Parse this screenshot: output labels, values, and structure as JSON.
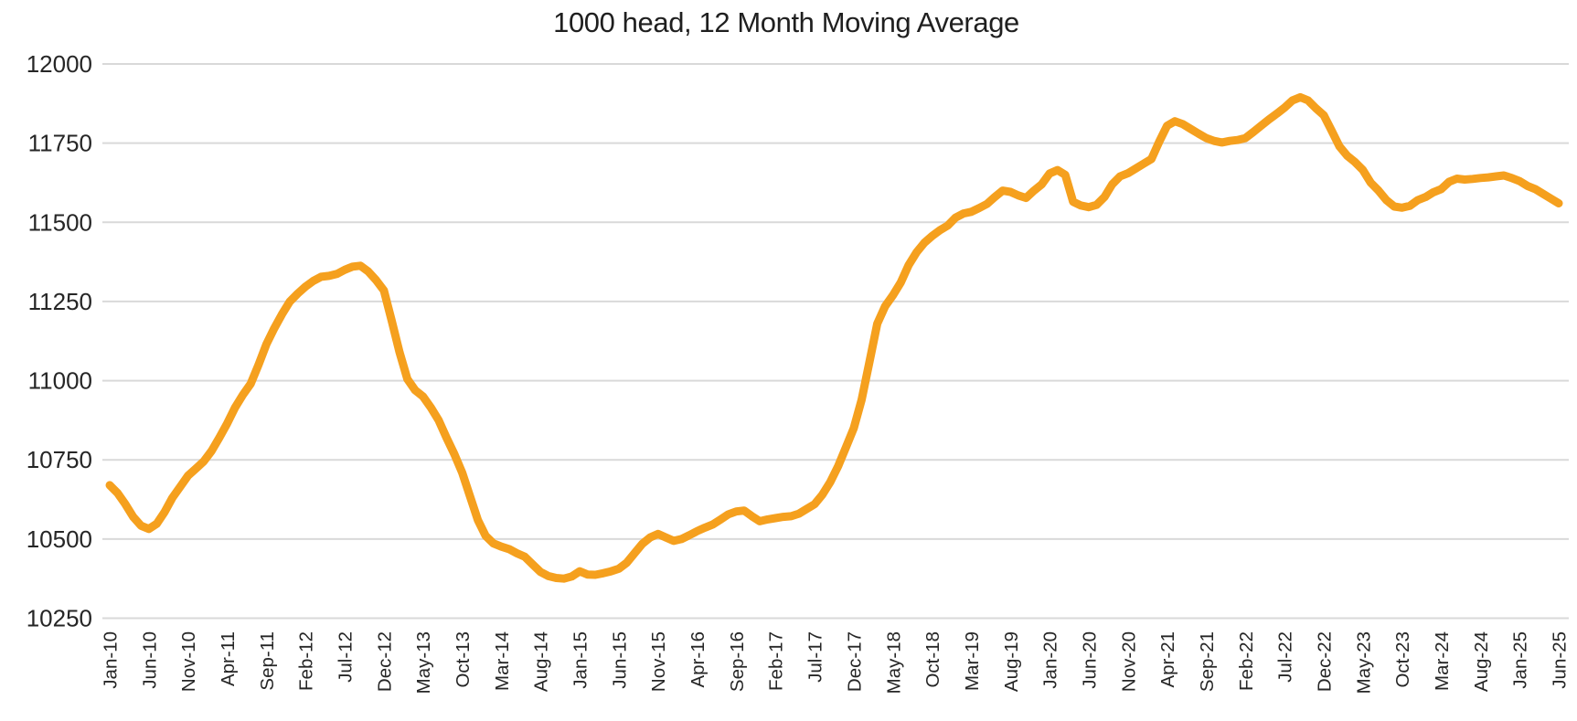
{
  "page": {
    "background": "#FFFFFF"
  },
  "chart_data": {
    "type": "line",
    "title": "1000 head, 12 Month Moving Average",
    "xlabel": "",
    "ylabel": "",
    "x_start": "Jan-10",
    "x_end": "Jun-25",
    "x_frequency": "monthly",
    "x_tick_every_n_points": 5,
    "x_tick_labels": [
      "Jan-10",
      "Jun-10",
      "Nov-10",
      "Apr-11",
      "Sep-11",
      "Feb-12",
      "Jul-12",
      "Dec-12",
      "May-13",
      "Oct-13",
      "Mar-14",
      "Aug-14",
      "Jan-15",
      "Jun-15",
      "Nov-15",
      "Apr-16",
      "Sep-16",
      "Feb-17",
      "Jul-17",
      "Dec-17",
      "May-18",
      "Oct-18",
      "Mar-19",
      "Aug-19",
      "Jan-20",
      "Jun-20",
      "Nov-20",
      "Apr-21",
      "Sep-21",
      "Feb-22",
      "Jul-22",
      "Dec-22",
      "May-23",
      "Oct-23",
      "Mar-24",
      "Aug-24",
      "Jan-25",
      "Jun-25"
    ],
    "ylim": [
      10250,
      12000
    ],
    "ytick_step": 250,
    "yticks": [
      10250,
      10500,
      10750,
      11000,
      11250,
      11500,
      11750,
      12000
    ],
    "grid": "horizontal-only",
    "legend": "none",
    "series": [
      {
        "name": "12 Month Moving Average",
        "color": "#F5A01E",
        "values": [
          10670,
          10645,
          10610,
          10570,
          10542,
          10532,
          10548,
          10585,
          10630,
          10665,
          10700,
          10722,
          10745,
          10778,
          10820,
          10865,
          10915,
          10955,
          10990,
          11050,
          11115,
          11165,
          11210,
          11250,
          11275,
          11297,
          11315,
          11328,
          11331,
          11337,
          11350,
          11360,
          11363,
          11345,
          11318,
          11285,
          11190,
          11090,
          11005,
          10970,
          10950,
          10915,
          10875,
          10820,
          10768,
          10710,
          10635,
          10560,
          10510,
          10486,
          10476,
          10468,
          10455,
          10444,
          10420,
          10396,
          10383,
          10377,
          10375,
          10382,
          10398,
          10388,
          10387,
          10392,
          10398,
          10406,
          10425,
          10455,
          10485,
          10505,
          10516,
          10505,
          10494,
          10500,
          10512,
          10525,
          10536,
          10546,
          10562,
          10578,
          10587,
          10590,
          10572,
          10556,
          10562,
          10566,
          10570,
          10572,
          10580,
          10595,
          10610,
          10640,
          10680,
          10730,
          10790,
          10850,
          10940,
          11060,
          11180,
          11235,
          11270,
          11310,
          11365,
          11405,
          11435,
          11457,
          11475,
          11490,
          11515,
          11528,
          11533,
          11545,
          11558,
          11580,
          11600,
          11596,
          11585,
          11577,
          11600,
          11620,
          11654,
          11665,
          11650,
          11565,
          11553,
          11548,
          11555,
          11580,
          11620,
          11645,
          11655,
          11670,
          11685,
          11700,
          11755,
          11805,
          11819,
          11810,
          11795,
          11780,
          11766,
          11757,
          11752,
          11757,
          11760,
          11766,
          11785,
          11805,
          11825,
          11843,
          11862,
          11885,
          11895,
          11885,
          11860,
          11838,
          11790,
          11740,
          11710,
          11690,
          11665,
          11625,
          11600,
          11570,
          11550,
          11546,
          11552,
          11570,
          11580,
          11595,
          11605,
          11628,
          11638,
          11635,
          11637,
          11640,
          11642,
          11645,
          11648,
          11640,
          11630,
          11615,
          11605,
          11590,
          11575,
          11560
        ]
      }
    ]
  },
  "style": {
    "line_color": "#F5A01E",
    "gridline_color": "#D9D9D9",
    "axis_text_color": "#262626",
    "title_color": "#1F1F1F"
  }
}
